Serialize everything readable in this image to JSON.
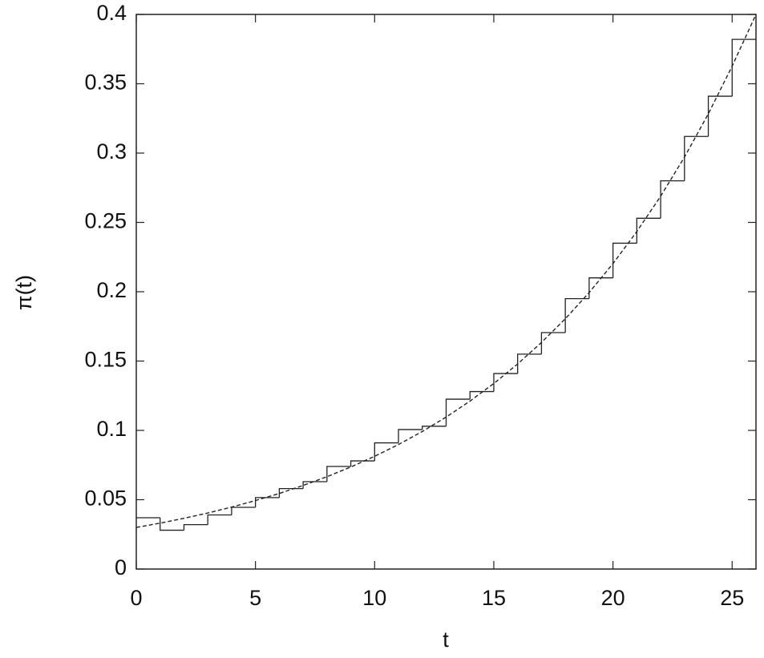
{
  "chart_data": {
    "type": "histogram",
    "xlabel": "t",
    "ylabel": "π(t)",
    "bins": [
      0,
      1,
      2,
      3,
      4,
      5,
      6,
      7,
      8,
      9,
      10,
      11,
      12,
      13,
      14,
      15,
      16,
      17,
      18,
      19,
      20,
      21,
      22,
      23,
      24,
      25,
      26
    ],
    "values": [
      0.037,
      0.028,
      0.032,
      0.039,
      0.0445,
      0.0515,
      0.058,
      0.063,
      0.074,
      0.078,
      0.091,
      0.1006,
      0.103,
      0.1225,
      0.128,
      0.141,
      0.155,
      0.1705,
      0.195,
      0.21,
      0.235,
      0.253,
      0.28,
      0.312,
      0.341,
      0.382
    ],
    "color": "#222222",
    "fit": {
      "type": "line",
      "style": "dashed",
      "color": "#222222",
      "x": [
        0,
        1,
        2,
        3,
        4,
        5,
        6,
        7,
        8,
        9,
        10,
        11,
        12,
        13,
        14,
        15,
        16,
        17,
        18,
        19,
        20,
        21,
        22,
        23,
        24,
        25,
        26
      ],
      "values": [
        0.03,
        0.0331,
        0.0366,
        0.0404,
        0.0447,
        0.0494,
        0.0545,
        0.0603,
        0.0666,
        0.0736,
        0.0813,
        0.0898,
        0.0992,
        0.1096,
        0.1211,
        0.1338,
        0.1479,
        0.1634,
        0.1805,
        0.1994,
        0.2203,
        0.2434,
        0.2689,
        0.2971,
        0.3283,
        0.3627,
        0.4
      ]
    },
    "xlim": [
      0,
      26
    ],
    "xticks": [
      0,
      5,
      10,
      15,
      20,
      25
    ],
    "ylim": [
      0,
      0.4
    ],
    "yticks": [
      0,
      0.05,
      0.1,
      0.15,
      0.2,
      0.25,
      0.3,
      0.35,
      0.4
    ],
    "grid": false
  }
}
